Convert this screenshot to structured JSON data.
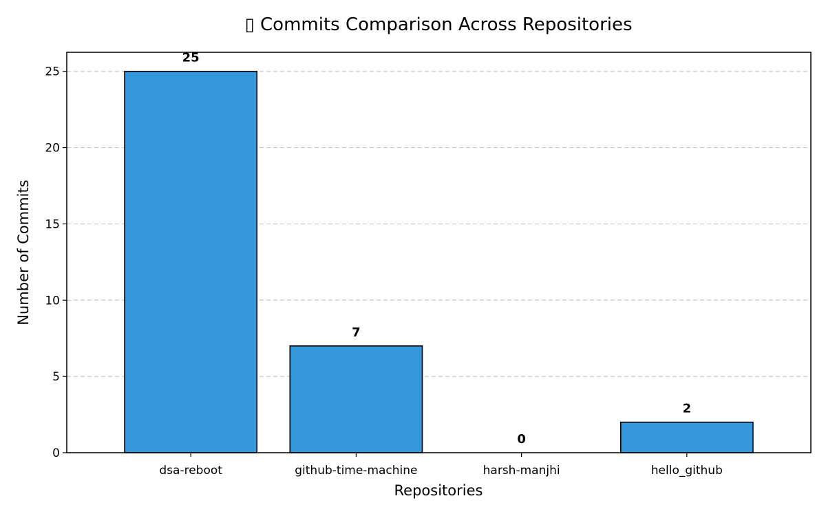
{
  "chart_data": {
    "type": "bar",
    "title": "▯ Commits Comparison Across Repositories",
    "xlabel": "Repositories",
    "ylabel": "Number of Commits",
    "categories": [
      "dsa-reboot",
      "github-time-machine",
      "harsh-manjhi",
      "hello_github"
    ],
    "values": [
      25,
      7,
      0,
      2
    ],
    "data_labels": [
      "25",
      "7",
      "0",
      "2"
    ],
    "ylim": [
      0,
      26.25
    ],
    "yticks": [
      0,
      5,
      10,
      15,
      20,
      25
    ],
    "grid": "y-dashed",
    "bar_color": "#3498db",
    "edge_color": "#000000"
  }
}
